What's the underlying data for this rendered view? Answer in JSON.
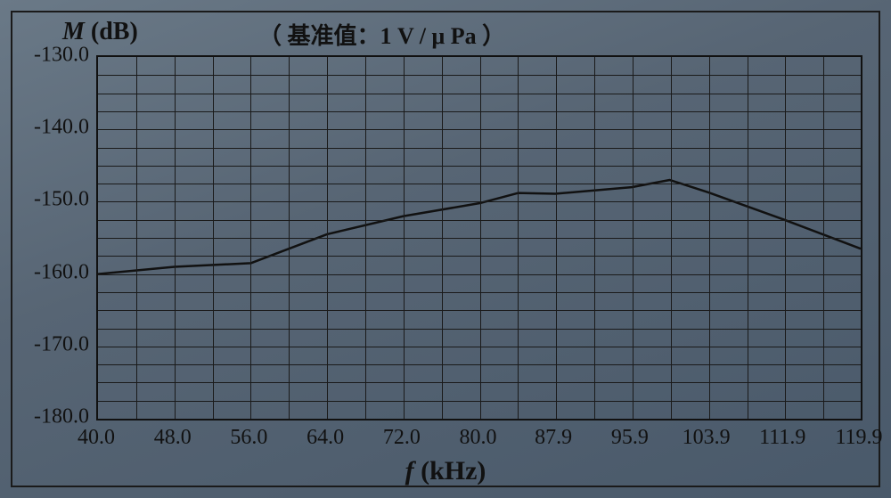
{
  "chart": {
    "type": "line",
    "y_axis_label_var": "M",
    "y_axis_label_unit": "(dB)",
    "reference_label": "（ 基准值：1 V / μ Pa ）",
    "x_axis_label_var": "f",
    "x_axis_label_unit": "(kHz)",
    "title_fontsize": 28,
    "label_fontsize": 30,
    "tick_fontsize": 24,
    "background_color": "#5a6a7a",
    "grid_color": "#1a1a1a",
    "border_color": "#111111",
    "line_color": "#111111",
    "line_width": 2.5,
    "xlim": [
      40.0,
      119.9
    ],
    "ylim": [
      -180.0,
      -130.0
    ],
    "x_minor_step": 4.0,
    "y_minor_step": 2.5,
    "x_ticks": [
      40.0,
      48.0,
      56.0,
      64.0,
      72.0,
      80.0,
      87.9,
      95.9,
      103.9,
      111.9,
      119.9
    ],
    "x_tick_labels": [
      "40.0",
      "48.0",
      "56.0",
      "64.0",
      "72.0",
      "80.0",
      "87.9",
      "95.9",
      "103.9",
      "111.9",
      "119.9"
    ],
    "y_ticks": [
      -130.0,
      -140.0,
      -150.0,
      -160.0,
      -170.0,
      -180.0
    ],
    "y_tick_labels": [
      "-130.0",
      "-140.0",
      "-150.0",
      "-160.0",
      "-170.0",
      "-180.0"
    ],
    "series": {
      "x": [
        40.0,
        48.0,
        56.0,
        64.0,
        72.0,
        80.0,
        84.0,
        87.9,
        95.9,
        99.9,
        103.9,
        111.9,
        119.9
      ],
      "y": [
        -160.0,
        -159.0,
        -158.5,
        -154.5,
        -152.0,
        -150.2,
        -148.8,
        -148.9,
        -148.0,
        -147.0,
        -148.7,
        -152.5,
        -156.5
      ]
    }
  }
}
